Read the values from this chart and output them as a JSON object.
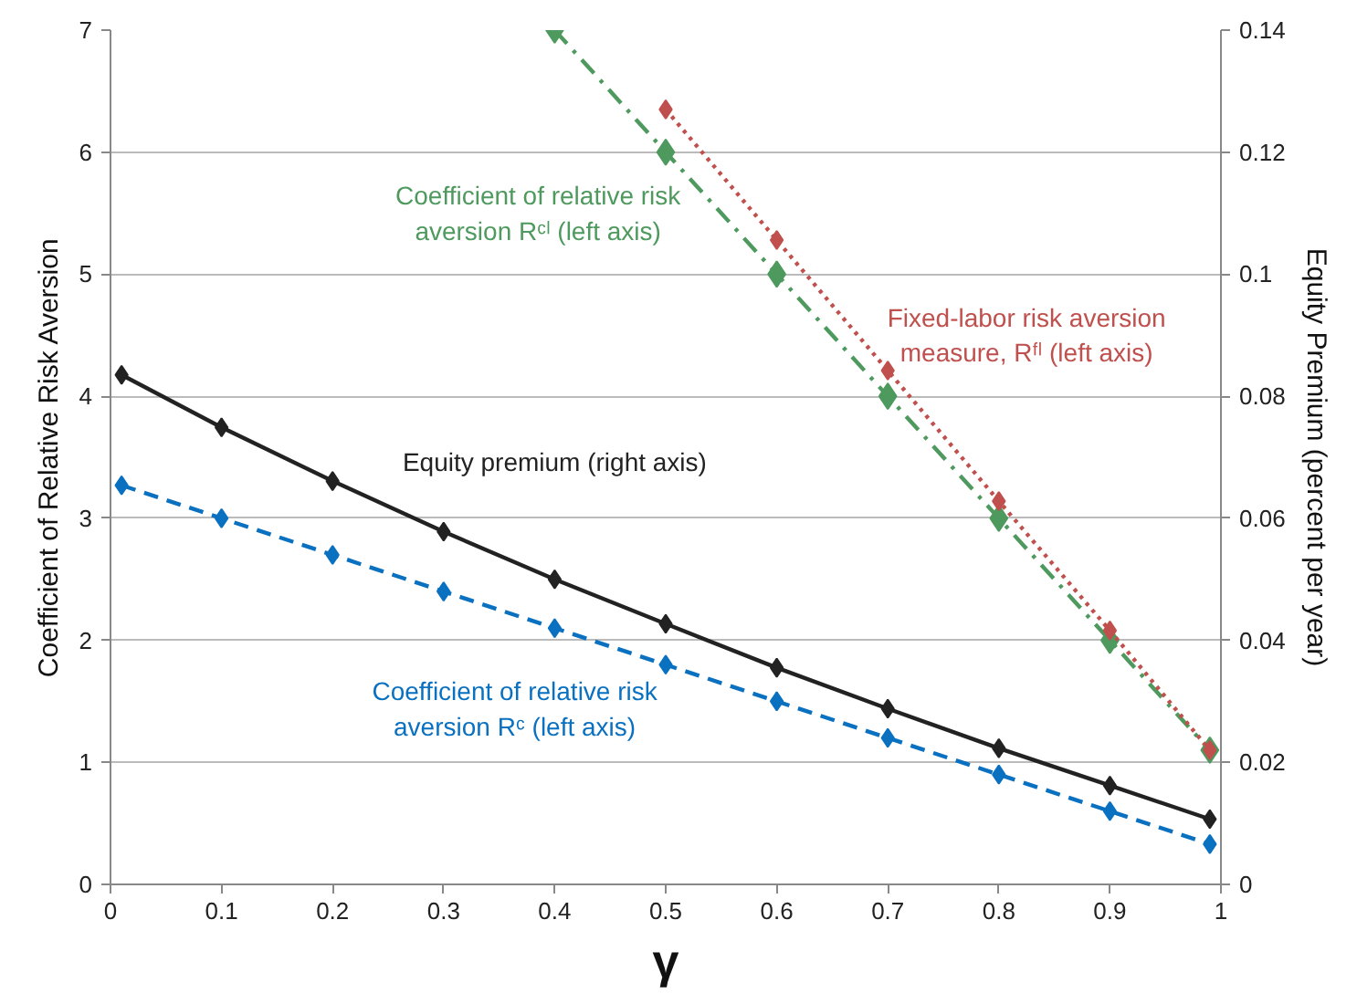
{
  "chart_data": {
    "type": "line",
    "xlabel": "γ",
    "ylabel": "Coefficient of Relative Risk Aversion",
    "y2label": "Equity Premium (percent per year)",
    "xlim": [
      0,
      1
    ],
    "xticks": [
      0,
      0.1,
      0.2,
      0.3,
      0.4,
      0.5,
      0.6,
      0.7,
      0.8,
      0.9,
      1
    ],
    "ylim": [
      0,
      7
    ],
    "yticks": [
      0,
      1,
      2,
      3,
      4,
      5,
      6,
      7
    ],
    "y2lim": [
      0,
      0.14
    ],
    "y2ticks": [
      0,
      0.02,
      0.04,
      0.06,
      0.08,
      0.1,
      0.12,
      0.14
    ],
    "grid": "y",
    "marker": "diamond",
    "series": [
      {
        "name": "Coefficient of relative risk aversion Rᶜˡ (left axis)",
        "color": "#4e9a5e",
        "line_style": "dashdot",
        "x": [
          0.4,
          0.5,
          0.6,
          0.7,
          0.8,
          0.9,
          0.99
        ],
        "values": [
          7,
          6,
          5,
          4,
          3,
          2,
          1.1
        ]
      },
      {
        "name": "Fixed-labor risk aversion measure, Rᶠˡ (left axis)",
        "color": "#c0504d",
        "line_style": "dotted",
        "x": [
          0.5,
          0.6,
          0.7,
          0.8,
          0.9,
          0.99
        ],
        "values": [
          6.35,
          5.28,
          4.21,
          3.14,
          2.08,
          1.1
        ]
      },
      {
        "name": "Equity premium (right axis)",
        "color": "#222222",
        "line_style": "solid",
        "axis": "y2",
        "x": [
          0.01,
          0.1,
          0.2,
          0.3,
          0.4,
          0.5,
          0.6,
          0.7,
          0.8,
          0.9,
          0.99
        ],
        "values": [
          0.0835,
          0.0749,
          0.0661,
          0.0578,
          0.05,
          0.0427,
          0.0355,
          0.0288,
          0.0223,
          0.0162,
          0.0107
        ]
      },
      {
        "name": "Coefficient of relative risk aversion Rᶜ (left axis)",
        "color": "#0a70c0",
        "line_style": "dashed",
        "x": [
          0.01,
          0.1,
          0.2,
          0.3,
          0.4,
          0.5,
          0.6,
          0.7,
          0.8,
          0.9,
          0.99
        ],
        "values": [
          3.27,
          3.0,
          2.7,
          2.4,
          2.1,
          1.8,
          1.5,
          1.2,
          0.9,
          0.6,
          0.33
        ]
      }
    ]
  }
}
